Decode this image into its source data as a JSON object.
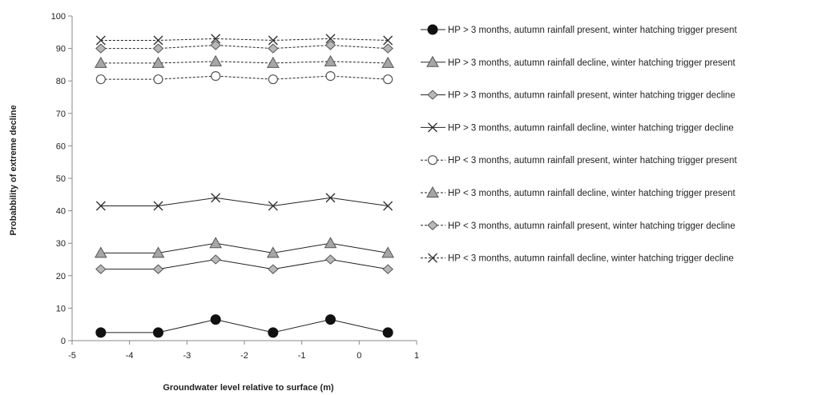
{
  "chart_data": {
    "type": "line",
    "title": "",
    "xlabel": "Groundwater level relative to surface (m)",
    "ylabel": "Probabbility of extreme decline",
    "xlim": [
      -5,
      1
    ],
    "ylim": [
      0,
      100
    ],
    "x_ticks": [
      "-5",
      "-4",
      "-3",
      "-2",
      "-1",
      "0",
      "1"
    ],
    "y_ticks": [
      "0",
      "10",
      "20",
      "30",
      "40",
      "50",
      "60",
      "70",
      "80",
      "90",
      "100"
    ],
    "grid": false,
    "legend_position": "right",
    "x": [
      -4.5,
      -3.5,
      -2.5,
      -1.5,
      -0.5,
      0.5
    ],
    "series": [
      {
        "name": "HP > 3 months, autumn rainfall present, winter hatching trigger present",
        "marker": "filled-circle",
        "line": "solid",
        "values": [
          2.5,
          2.5,
          6.5,
          2.5,
          6.5,
          2.5
        ]
      },
      {
        "name": "HP > 3 months, autumn rainfall decline, winter hatching trigger present",
        "marker": "triangle",
        "line": "solid",
        "values": [
          27,
          27,
          30,
          27,
          30,
          27
        ]
      },
      {
        "name": "HP > 3 months, autumn rainfall present, winter hatching trigger decline",
        "marker": "diamond",
        "line": "solid",
        "values": [
          22,
          22,
          25,
          22,
          25,
          22
        ]
      },
      {
        "name": "HP > 3 months, autumn rainfall decline, winter hatching trigger decline",
        "marker": "x",
        "line": "solid",
        "values": [
          41.5,
          41.5,
          44,
          41.5,
          44,
          41.5
        ]
      },
      {
        "name": "HP < 3 months, autumn rainfall present, winter hatching trigger present",
        "marker": "open-circle",
        "line": "dashed",
        "values": [
          80.5,
          80.5,
          81.5,
          80.5,
          81.5,
          80.5
        ]
      },
      {
        "name": "HP < 3 months, autumn rainfall decline, winter hatching trigger present",
        "marker": "triangle",
        "line": "dashed",
        "values": [
          85.5,
          85.5,
          86,
          85.5,
          86,
          85.5
        ]
      },
      {
        "name": "HP < 3 months, autumn rainfall present, winter hatching trigger decline",
        "marker": "diamond",
        "line": "dashed",
        "values": [
          90,
          90,
          91,
          90,
          91,
          90
        ]
      },
      {
        "name": "HP < 3 months, autumn rainfall decline, winter hatching trigger decline",
        "marker": "x",
        "line": "dashed",
        "values": [
          92.5,
          92.5,
          93,
          92.5,
          93,
          92.5
        ]
      }
    ]
  }
}
